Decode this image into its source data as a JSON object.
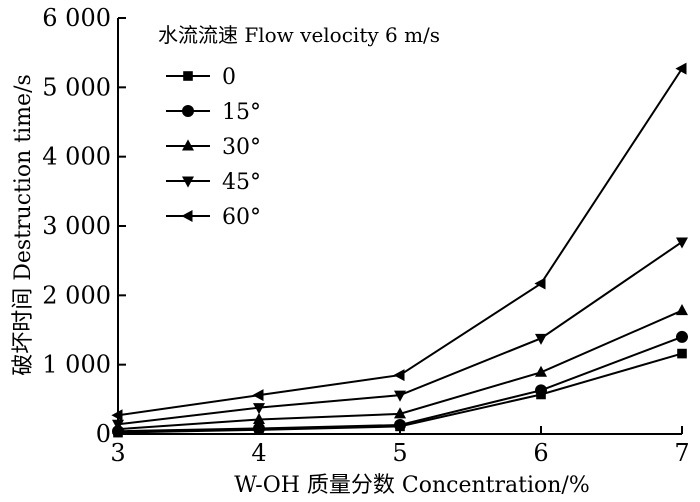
{
  "chart_data": {
    "type": "line",
    "title": "水流流速 Flow velocity 6 m/s",
    "xlabel": "W-OH 质量分数 Concentration/%",
    "ylabel": "破坏时间 Destruction time/s",
    "x": [
      3,
      4,
      5,
      6,
      7
    ],
    "xlim": [
      3,
      7
    ],
    "ylim": [
      0,
      6000
    ],
    "x_tick_labels": [
      "3",
      "4",
      "5",
      "6",
      "7"
    ],
    "y_tick_values": [
      0,
      1000,
      2000,
      3000,
      4000,
      5000,
      6000
    ],
    "y_tick_labels": [
      "0",
      "1 000",
      "2 000",
      "3 000",
      "4 000",
      "5 000",
      "6 000"
    ],
    "grid": false,
    "legend_position": "top-left",
    "series": [
      {
        "name": "0",
        "marker": "square",
        "values": [
          20,
          60,
          110,
          570,
          1160
        ]
      },
      {
        "name": "15°",
        "marker": "circle",
        "values": [
          40,
          80,
          130,
          630,
          1400
        ]
      },
      {
        "name": "30°",
        "marker": "triangle-up",
        "values": [
          70,
          210,
          290,
          890,
          1780
        ]
      },
      {
        "name": "45°",
        "marker": "triangle-down",
        "values": [
          140,
          380,
          560,
          1380,
          2770
        ]
      },
      {
        "name": "60°",
        "marker": "triangle-left",
        "values": [
          270,
          560,
          850,
          2170,
          5270
        ]
      }
    ]
  }
}
